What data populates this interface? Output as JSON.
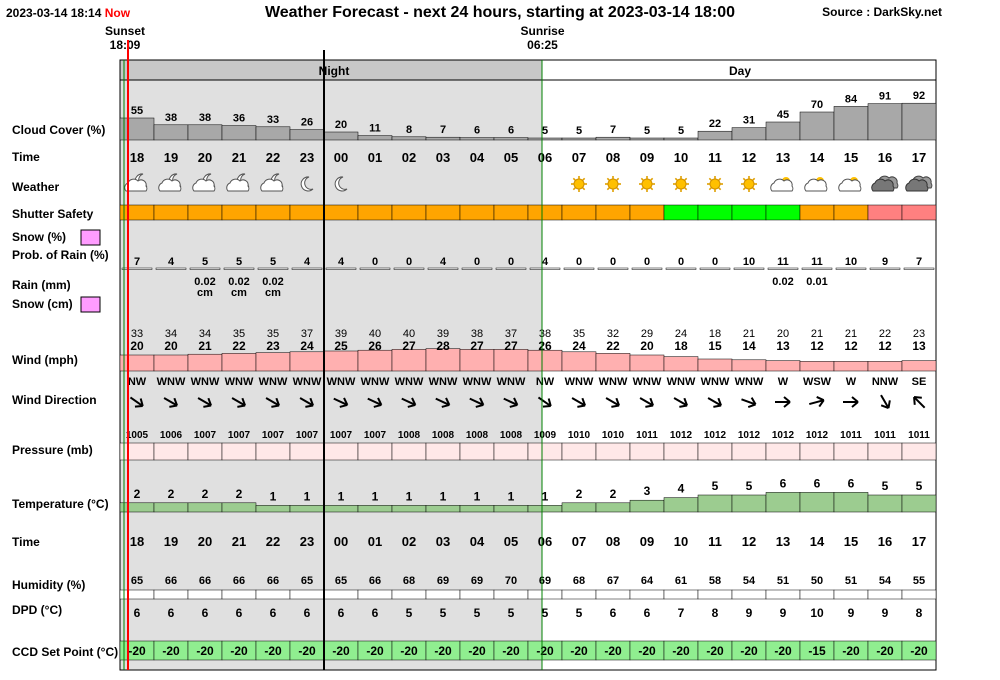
{
  "header": {
    "datetime": "2023-03-14 18:14",
    "now_label": "Now",
    "title": "Weather Forecast - next 24 hours, starting at 2023-03-14 18:00",
    "source": "Source : DarkSky.net",
    "sunset_label": "Sunset",
    "sunset_time": "18:09",
    "sunrise_label": "Sunrise",
    "sunrise_time": "06:25"
  },
  "period": {
    "night_label": "Night",
    "day_label": "Day"
  },
  "labels": {
    "cloud_cover": "Cloud Cover (%)",
    "time": "Time",
    "weather": "Weather",
    "shutter": "Shutter Safety",
    "snow_pct": "Snow (%)",
    "prob_rain": "Prob. of Rain (%)",
    "rain_mm": "Rain (mm)",
    "snow_cm": "Snow (cm)",
    "wind": "Wind (mph)",
    "wind_dir": "Wind Direction",
    "pressure": "Pressure (mb)",
    "temperature": "Temperature (°C)",
    "time2": "Time",
    "humidity": "Humidity (%)",
    "dpd": "DPD (°C)",
    "ccd": "CCD Set Point (°C)"
  },
  "colors": {
    "night_band": "#e0e0e0",
    "day_band": "#ffffff",
    "cloud_bar": "#a8a8a8",
    "shutter_orange": "#ffa500",
    "shutter_green": "#00ff00",
    "shutter_red": "#ff8080",
    "wind_bar": "#ffb0b0",
    "pressure_bar": "#ffe8e8",
    "temp_bar": "#9ccc90",
    "ccd_bar": "#90ee90",
    "now_line": "#ff0000",
    "night_line": "#008000",
    "snow_legend": "#ff9cff"
  },
  "chart_data": {
    "type": "table",
    "hours": [
      "18",
      "19",
      "20",
      "21",
      "22",
      "23",
      "00",
      "01",
      "02",
      "03",
      "04",
      "05",
      "06",
      "07",
      "08",
      "09",
      "10",
      "11",
      "12",
      "13",
      "14",
      "15",
      "16",
      "17"
    ],
    "cloud_cover": [
      55,
      38,
      38,
      36,
      33,
      26,
      20,
      11,
      8,
      7,
      6,
      6,
      5,
      5,
      7,
      5,
      5,
      22,
      31,
      45,
      70,
      84,
      91,
      92
    ],
    "weather_icons": [
      "partly-cloudy-night-icon",
      "partly-cloudy-night-icon",
      "partly-cloudy-night-icon",
      "partly-cloudy-night-icon",
      "partly-cloudy-night-icon",
      "clear-night-moon-icon",
      "clear-night-moon-icon",
      "",
      "",
      "",
      "",
      "",
      "",
      "sun-icon",
      "sun-icon",
      "sun-icon",
      "sun-icon",
      "sun-icon",
      "sun-icon",
      "partly-cloudy-day-icon",
      "partly-cloudy-day-icon",
      "partly-cloudy-day-icon",
      "cloudy-icon",
      "cloudy-icon"
    ],
    "shutter_safety": [
      "orange",
      "orange",
      "orange",
      "orange",
      "orange",
      "orange",
      "orange",
      "orange",
      "orange",
      "orange",
      "orange",
      "orange",
      "orange",
      "orange",
      "orange",
      "orange",
      "green",
      "green",
      "green",
      "green",
      "orange",
      "orange",
      "red",
      "red"
    ],
    "prob_rain": [
      7,
      4,
      5,
      5,
      5,
      4,
      4,
      0,
      0,
      4,
      0,
      0,
      4,
      0,
      0,
      0,
      0,
      0,
      10,
      11,
      11,
      10,
      9,
      7
    ],
    "rain_mm": [
      "",
      "",
      "0.02",
      "0.02",
      "0.02",
      "",
      "",
      "",
      "",
      "",
      "",
      "",
      "",
      "",
      "",
      "",
      "",
      "",
      "",
      "0.02",
      "0.01",
      "",
      "",
      ""
    ],
    "snow_cm": [
      "",
      "",
      "cm",
      "cm",
      "cm",
      "",
      "",
      "",
      "",
      "",
      "",
      "",
      "",
      "",
      "",
      "",
      "",
      "",
      "",
      "",
      "",
      "",
      "",
      ""
    ],
    "wind_gust": [
      33,
      34,
      34,
      35,
      35,
      37,
      39,
      40,
      40,
      39,
      38,
      37,
      38,
      35,
      32,
      29,
      24,
      18,
      21,
      20,
      21,
      21,
      22,
      23
    ],
    "wind_speed": [
      20,
      20,
      21,
      22,
      23,
      24,
      25,
      26,
      27,
      28,
      27,
      27,
      26,
      24,
      22,
      20,
      18,
      15,
      14,
      13,
      12,
      12,
      12,
      13
    ],
    "wind_dir": [
      "NW",
      "WNW",
      "WNW",
      "WNW",
      "WNW",
      "WNW",
      "WNW",
      "WNW",
      "WNW",
      "WNW",
      "WNW",
      "WNW",
      "NW",
      "WNW",
      "WNW",
      "WNW",
      "WNW",
      "WNW",
      "WNW",
      "W",
      "WSW",
      "W",
      "NNW",
      "SE"
    ],
    "wind_arrow_deg": [
      35,
      30,
      30,
      30,
      30,
      30,
      25,
      25,
      25,
      25,
      25,
      25,
      35,
      30,
      30,
      30,
      30,
      30,
      20,
      0,
      -15,
      0,
      60,
      -135
    ],
    "pressure": [
      1005,
      1006,
      1007,
      1007,
      1007,
      1007,
      1007,
      1007,
      1008,
      1008,
      1008,
      1008,
      1009,
      1010,
      1010,
      1011,
      1012,
      1012,
      1012,
      1012,
      1012,
      1011,
      1011,
      1011
    ],
    "temperature": [
      2,
      2,
      2,
      2,
      1,
      1,
      1,
      1,
      1,
      1,
      1,
      1,
      1,
      2,
      2,
      3,
      4,
      5,
      5,
      6,
      6,
      6,
      5,
      5
    ],
    "humidity": [
      65,
      66,
      66,
      66,
      66,
      65,
      65,
      66,
      68,
      69,
      69,
      70,
      69,
      68,
      67,
      64,
      61,
      58,
      54,
      51,
      50,
      51,
      54,
      55
    ],
    "dpd": [
      6,
      6,
      6,
      6,
      6,
      6,
      6,
      6,
      5,
      5,
      5,
      5,
      5,
      5,
      6,
      6,
      7,
      8,
      9,
      9,
      10,
      9,
      9,
      8
    ],
    "ccd_set_point": [
      -20,
      -20,
      -20,
      -20,
      -20,
      -20,
      -20,
      -20,
      -20,
      -20,
      -20,
      -20,
      -20,
      -20,
      -20,
      -20,
      -20,
      -20,
      -20,
      -20,
      -15,
      -20,
      -20,
      -20
    ]
  }
}
